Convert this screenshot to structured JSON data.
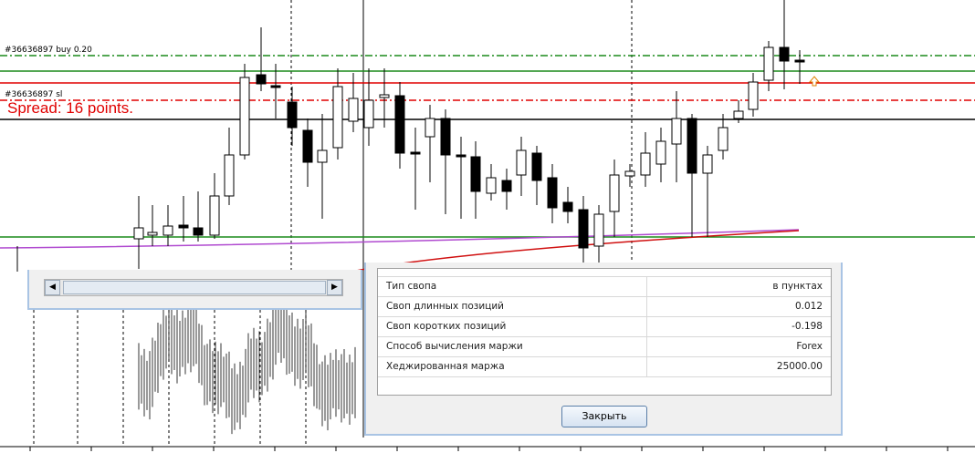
{
  "chart_labels": {
    "order_label": "#36636897 buy 0.20",
    "sl_label": "#36636897 sl",
    "spread": "Spread: 16 points."
  },
  "table": {
    "rows": [
      [
        "Тип свопа",
        "в пунктах"
      ],
      [
        "Своп длинных позиций",
        "0.012"
      ],
      [
        "Своп коротких позиций",
        "-0.198"
      ],
      [
        "Способ вычисления маржи",
        "Forex"
      ],
      [
        "Хеджированная маржа",
        "25000.00"
      ]
    ]
  },
  "button": "Закрыть"
}
